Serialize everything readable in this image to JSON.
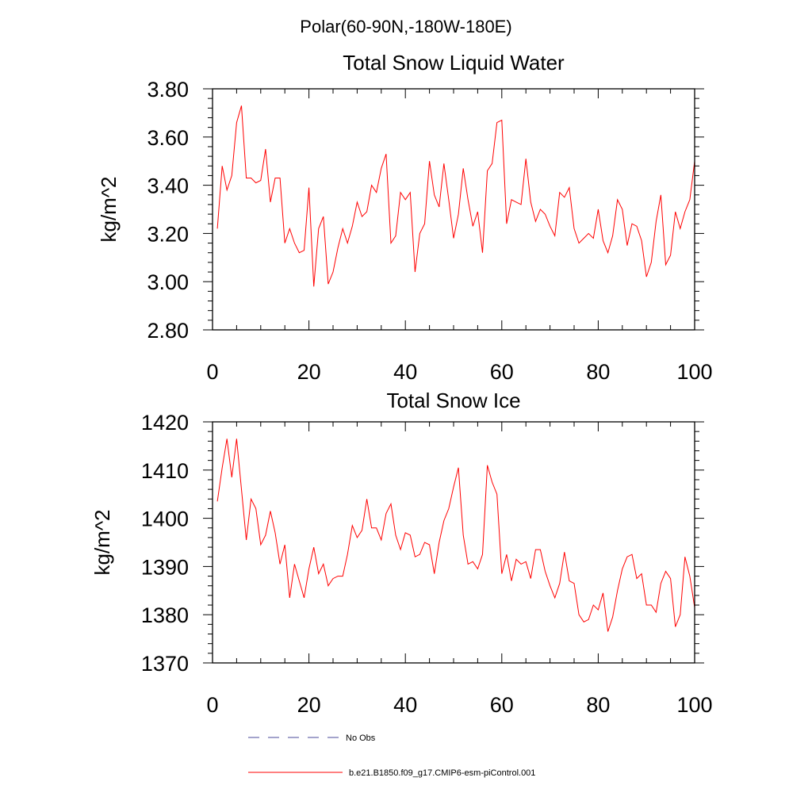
{
  "suptitle": "Polar(60-90N,-180W-180E)",
  "colors": {
    "model_line": "#ff0000",
    "obs_line": "#4a4a9a",
    "axis": "#000000",
    "background": "#ffffff"
  },
  "legend": {
    "obs_label": "No Obs",
    "model_label": "b.e21.B1850.f09_g17.CMIP6-esm-piControl.001"
  },
  "chart_data": [
    {
      "type": "line",
      "title": "Total Snow Liquid Water",
      "xlabel": "",
      "ylabel": "kg/m^2",
      "xlim": [
        0,
        100
      ],
      "ylim": [
        2.8,
        3.8
      ],
      "xticks": [
        0,
        20,
        40,
        60,
        80,
        100
      ],
      "xtick_labels": [
        "0",
        "20",
        "40",
        "60",
        "80",
        "100"
      ],
      "yticks": [
        2.8,
        3.0,
        3.2,
        3.4,
        3.6,
        3.8
      ],
      "ytick_labels": [
        "2.80",
        "3.00",
        "3.20",
        "3.40",
        "3.60",
        "3.80"
      ],
      "series": [
        {
          "name": "b.e21.B1850.f09_g17.CMIP6-esm-piControl.001",
          "x_start": 1,
          "values": [
            3.22,
            3.48,
            3.38,
            3.44,
            3.66,
            3.73,
            3.43,
            3.43,
            3.41,
            3.42,
            3.55,
            3.33,
            3.43,
            3.43,
            3.16,
            3.22,
            3.16,
            3.12,
            3.13,
            3.39,
            2.98,
            3.22,
            3.27,
            2.99,
            3.04,
            3.14,
            3.22,
            3.16,
            3.23,
            3.33,
            3.27,
            3.29,
            3.4,
            3.37,
            3.47,
            3.53,
            3.16,
            3.19,
            3.37,
            3.34,
            3.37,
            3.04,
            3.2,
            3.24,
            3.5,
            3.36,
            3.31,
            3.49,
            3.34,
            3.18,
            3.28,
            3.47,
            3.34,
            3.23,
            3.29,
            3.12,
            3.46,
            3.49,
            3.66,
            3.67,
            3.24,
            3.34,
            3.33,
            3.32,
            3.51,
            3.33,
            3.25,
            3.3,
            3.28,
            3.23,
            3.19,
            3.37,
            3.35,
            3.39,
            3.22,
            3.16,
            3.18,
            3.2,
            3.18,
            3.3,
            3.17,
            3.12,
            3.19,
            3.34,
            3.3,
            3.15,
            3.24,
            3.23,
            3.17,
            3.02,
            3.08,
            3.25,
            3.36,
            3.07,
            3.11,
            3.29,
            3.22,
            3.29,
            3.34,
            3.5
          ]
        }
      ]
    },
    {
      "type": "line",
      "title": "Total Snow Ice",
      "xlabel": "",
      "ylabel": "kg/m^2",
      "xlim": [
        0,
        100
      ],
      "ylim": [
        1370,
        1420
      ],
      "xticks": [
        0,
        20,
        40,
        60,
        80,
        100
      ],
      "xtick_labels": [
        "0",
        "20",
        "40",
        "60",
        "80",
        "100"
      ],
      "yticks": [
        1370,
        1380,
        1390,
        1400,
        1410,
        1420
      ],
      "ytick_labels": [
        "1370",
        "1380",
        "1390",
        "1400",
        "1410",
        "1420"
      ],
      "series": [
        {
          "name": "b.e21.B1850.f09_g17.CMIP6-esm-piControl.001",
          "x_start": 1,
          "values": [
            1403.5,
            1410.5,
            1416.5,
            1408.5,
            1416.5,
            1406.0,
            1395.5,
            1404.0,
            1402.0,
            1394.5,
            1396.5,
            1401.5,
            1397.0,
            1390.5,
            1394.5,
            1383.5,
            1390.5,
            1387.0,
            1383.5,
            1389.5,
            1394.0,
            1388.5,
            1390.5,
            1386.0,
            1387.5,
            1388.0,
            1388.0,
            1392.5,
            1398.5,
            1396.0,
            1397.5,
            1404.0,
            1398.0,
            1398.0,
            1395.5,
            1401.0,
            1403.0,
            1396.5,
            1393.5,
            1397.0,
            1396.5,
            1392.0,
            1392.5,
            1395.0,
            1394.5,
            1388.5,
            1395.0,
            1399.5,
            1402.0,
            1406.5,
            1410.5,
            1396.5,
            1390.5,
            1391.0,
            1389.5,
            1392.5,
            1411.0,
            1407.5,
            1405.0,
            1388.5,
            1392.5,
            1387.0,
            1391.5,
            1390.5,
            1391.0,
            1387.5,
            1393.5,
            1393.5,
            1389.0,
            1386.0,
            1383.5,
            1386.5,
            1393.0,
            1387.0,
            1386.5,
            1380.0,
            1378.5,
            1379.0,
            1382.0,
            1381.0,
            1384.5,
            1376.5,
            1379.5,
            1385.0,
            1389.5,
            1392.0,
            1392.5,
            1387.5,
            1388.5,
            1382.0,
            1382.0,
            1380.5,
            1386.5,
            1389.0,
            1387.5,
            1377.5,
            1380.0,
            1392.0,
            1388.0,
            1381.5
          ]
        }
      ]
    }
  ]
}
